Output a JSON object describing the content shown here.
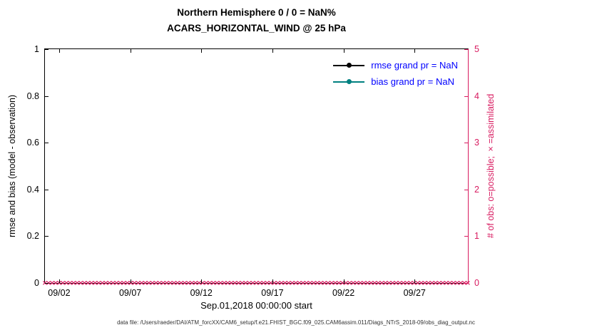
{
  "chart_data": {
    "type": "line",
    "title": "Northern Hemisphere 0 / 0 = NaN%",
    "subtitle": "ACARS_HORIZONTAL_WIND @ 25 hPa",
    "xlabel": "Sep.01,2018 00:00:00 start",
    "ylabel_left": "rmse and bias (model - observation)",
    "ylabel_right": "# of obs: o=possible; ×=assimilated",
    "x_ticks": [
      "09/02",
      "09/07",
      "09/12",
      "09/17",
      "09/22",
      "09/27"
    ],
    "y_ticks_left": [
      "1",
      "0.8",
      "0.6",
      "0.4",
      "0.2",
      "0"
    ],
    "y_ticks_right": [
      "5",
      "4",
      "3",
      "2",
      "1",
      "0"
    ],
    "ylim_left": [
      0,
      1
    ],
    "ylim_right": [
      0,
      5
    ],
    "grid": false,
    "legend_position": "top-right-inside",
    "legend": [
      {
        "label": "rmse grand pr = NaN",
        "color": "#000000",
        "marker": "filled-circle"
      },
      {
        "label": "bias grand pr = NaN",
        "color": "#008080",
        "marker": "filled-circle"
      }
    ],
    "series": [
      {
        "name": "rmse",
        "values": [],
        "note": "all NaN, nothing plotted"
      },
      {
        "name": "bias",
        "values": [],
        "note": "all NaN, nothing plotted"
      },
      {
        "name": "assimilated obs (×)",
        "constant_value": 0
      }
    ],
    "obs_markers": {
      "glyph": "×",
      "count": 119,
      "value": 0
    },
    "colors": {
      "axis-right": "#d81b60",
      "legend-text": "#0000ff",
      "rmse": "#000000",
      "bias": "#008080"
    },
    "footer": "data file: /Users/raeder/DAI/ATM_forcXX/CAM6_setup/f.e21.FHIST_BGC.f09_025.CAM6assim.011/Diags_NTrS_2018-09/obs_diag_output.nc"
  }
}
